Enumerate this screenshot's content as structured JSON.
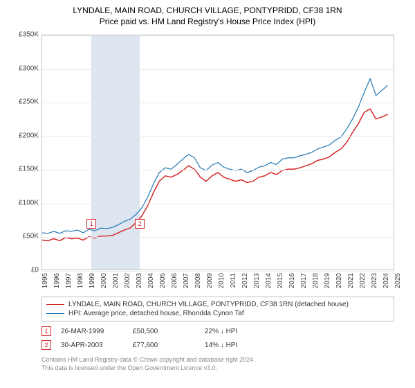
{
  "title": "LYNDALE, MAIN ROAD, CHURCH VILLAGE, PONTYPRIDD, CF38 1RN",
  "subtitle": "Price paid vs. HM Land Registry's House Price Index (HPI)",
  "chart": {
    "type": "line",
    "background_color": "#ffffff",
    "grid_color": "#e8e8e8",
    "axis_color": "#c0c0c0",
    "tick_color": "#404040",
    "tick_fontsize": 10,
    "y": {
      "min": 0,
      "max": 350000,
      "ticks": [
        {
          "v": 0,
          "label": "£0"
        },
        {
          "v": 50000,
          "label": "£50K"
        },
        {
          "v": 100000,
          "label": "£100K"
        },
        {
          "v": 150000,
          "label": "£150K"
        },
        {
          "v": 200000,
          "label": "£200K"
        },
        {
          "v": 250000,
          "label": "£250K"
        },
        {
          "v": 300000,
          "label": "£300K"
        },
        {
          "v": 350000,
          "label": "£350K"
        }
      ]
    },
    "x": {
      "min": 1995,
      "max": 2025,
      "ticks": [
        1995,
        1996,
        1997,
        1998,
        1999,
        2000,
        2001,
        2002,
        2003,
        2004,
        2005,
        2006,
        2007,
        2008,
        2009,
        2010,
        2011,
        2012,
        2013,
        2014,
        2015,
        2016,
        2017,
        2018,
        2019,
        2020,
        2021,
        2022,
        2023,
        2024,
        2025
      ]
    },
    "highlight": {
      "from": 1999.2,
      "to": 2003.3,
      "color": "#dce5f0"
    },
    "markers": [
      {
        "id": "1",
        "x": 1999.2,
        "y": 70000
      },
      {
        "id": "2",
        "x": 2003.3,
        "y": 70000
      }
    ],
    "series": [
      {
        "name": "property",
        "label": "LYNDALE, MAIN ROAD, CHURCH VILLAGE, PONTYPRIDD, CF38 1RN (detached house)",
        "color": "#d62728",
        "line_width": 1.5,
        "points": [
          [
            1995,
            44000
          ],
          [
            1995.5,
            43000
          ],
          [
            1996,
            46000
          ],
          [
            1996.5,
            43000
          ],
          [
            1997,
            48000
          ],
          [
            1997.5,
            46000
          ],
          [
            1998,
            47000
          ],
          [
            1998.5,
            44000
          ],
          [
            1999,
            49000
          ],
          [
            1999.5,
            47000
          ],
          [
            2000,
            50000
          ],
          [
            2000.5,
            50000
          ],
          [
            2001,
            51000
          ],
          [
            2001.5,
            55000
          ],
          [
            2002,
            59000
          ],
          [
            2002.5,
            62000
          ],
          [
            2003,
            70000
          ],
          [
            2003.5,
            80000
          ],
          [
            2004,
            95000
          ],
          [
            2004.5,
            115000
          ],
          [
            2005,
            132000
          ],
          [
            2005.5,
            140000
          ],
          [
            2006,
            138000
          ],
          [
            2006.5,
            142000
          ],
          [
            2007,
            148000
          ],
          [
            2007.5,
            155000
          ],
          [
            2008,
            150000
          ],
          [
            2008.5,
            138000
          ],
          [
            2009,
            132000
          ],
          [
            2009.5,
            140000
          ],
          [
            2010,
            145000
          ],
          [
            2010.5,
            138000
          ],
          [
            2011,
            135000
          ],
          [
            2011.5,
            132000
          ],
          [
            2012,
            134000
          ],
          [
            2012.5,
            130000
          ],
          [
            2013,
            132000
          ],
          [
            2013.5,
            138000
          ],
          [
            2014,
            140000
          ],
          [
            2014.5,
            145000
          ],
          [
            2015,
            142000
          ],
          [
            2015.5,
            148000
          ],
          [
            2016,
            150000
          ],
          [
            2016.5,
            150000
          ],
          [
            2017,
            152000
          ],
          [
            2017.5,
            155000
          ],
          [
            2018,
            158000
          ],
          [
            2018.5,
            163000
          ],
          [
            2019,
            165000
          ],
          [
            2019.5,
            168000
          ],
          [
            2020,
            175000
          ],
          [
            2020.5,
            180000
          ],
          [
            2021,
            190000
          ],
          [
            2021.5,
            205000
          ],
          [
            2022,
            218000
          ],
          [
            2022.5,
            235000
          ],
          [
            2023,
            240000
          ],
          [
            2023.5,
            225000
          ],
          [
            2024,
            228000
          ],
          [
            2024.5,
            232000
          ]
        ]
      },
      {
        "name": "hpi",
        "label": "HPI: Average price, detached house, Rhondda Cynon Taf",
        "color": "#1f77b4",
        "line_width": 1.2,
        "points": [
          [
            1995,
            55000
          ],
          [
            1995.5,
            54000
          ],
          [
            1996,
            57000
          ],
          [
            1996.5,
            54000
          ],
          [
            1997,
            58000
          ],
          [
            1997.5,
            57000
          ],
          [
            1998,
            59000
          ],
          [
            1998.5,
            55000
          ],
          [
            1999,
            60000
          ],
          [
            1999.5,
            58000
          ],
          [
            2000,
            62000
          ],
          [
            2000.5,
            61000
          ],
          [
            2001,
            63000
          ],
          [
            2001.5,
            67000
          ],
          [
            2002,
            72000
          ],
          [
            2002.5,
            75000
          ],
          [
            2003,
            82000
          ],
          [
            2003.5,
            92000
          ],
          [
            2004,
            108000
          ],
          [
            2004.5,
            128000
          ],
          [
            2005,
            145000
          ],
          [
            2005.5,
            152000
          ],
          [
            2006,
            150000
          ],
          [
            2006.5,
            157000
          ],
          [
            2007,
            165000
          ],
          [
            2007.5,
            172000
          ],
          [
            2008,
            167000
          ],
          [
            2008.5,
            152000
          ],
          [
            2009,
            148000
          ],
          [
            2009.5,
            156000
          ],
          [
            2010,
            160000
          ],
          [
            2010.5,
            153000
          ],
          [
            2011,
            150000
          ],
          [
            2011.5,
            148000
          ],
          [
            2012,
            150000
          ],
          [
            2012.5,
            145000
          ],
          [
            2013,
            148000
          ],
          [
            2013.5,
            153000
          ],
          [
            2014,
            155000
          ],
          [
            2014.5,
            160000
          ],
          [
            2015,
            157000
          ],
          [
            2015.5,
            165000
          ],
          [
            2016,
            167000
          ],
          [
            2016.5,
            167000
          ],
          [
            2017,
            170000
          ],
          [
            2017.5,
            172000
          ],
          [
            2018,
            175000
          ],
          [
            2018.5,
            180000
          ],
          [
            2019,
            183000
          ],
          [
            2019.5,
            186000
          ],
          [
            2020,
            193000
          ],
          [
            2020.5,
            198000
          ],
          [
            2021,
            210000
          ],
          [
            2021.5,
            225000
          ],
          [
            2022,
            243000
          ],
          [
            2022.5,
            265000
          ],
          [
            2023,
            285000
          ],
          [
            2023.5,
            260000
          ],
          [
            2024,
            268000
          ],
          [
            2024.5,
            275000
          ]
        ]
      }
    ]
  },
  "legend": [
    {
      "color": "#d62728",
      "label": "LYNDALE, MAIN ROAD, CHURCH VILLAGE, PONTYPRIDD, CF38 1RN (detached house)"
    },
    {
      "color": "#1f77b4",
      "label": "HPI: Average price, detached house, Rhondda Cynon Taf"
    }
  ],
  "sales": [
    {
      "mk": "1",
      "date": "26-MAR-1999",
      "price": "£50,500",
      "pct": "22%",
      "arrow": "↓",
      "vs": "HPI"
    },
    {
      "mk": "2",
      "date": "30-APR-2003",
      "price": "£77,600",
      "pct": "14%",
      "arrow": "↓",
      "vs": "HPI"
    }
  ],
  "footer1": "Contains HM Land Registry data © Crown copyright and database right 2024.",
  "footer2": "This data is licensed under the Open Government Licence v3.0."
}
